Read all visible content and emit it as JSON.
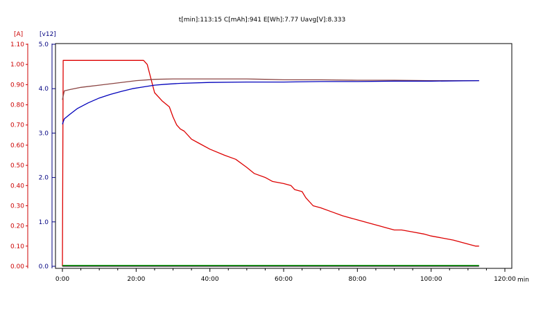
{
  "chart_data": {
    "type": "line",
    "title": "t[min]:113:15  C[mAh]:941  E[Wh]:7.77  Uavg[V]:8.333",
    "xlabel": "min",
    "y_left": {
      "label": "[A]",
      "color": "#cc0000",
      "range": [
        0,
        1.1
      ],
      "ticks": [
        "0.00",
        "0.10",
        "0.20",
        "0.30",
        "0.40",
        "0.50",
        "0.60",
        "0.70",
        "0.80",
        "0.90",
        "1.00",
        "1.10"
      ]
    },
    "y_right": {
      "label": "[v12]",
      "color": "#000080",
      "range": [
        0,
        5.0
      ],
      "ticks": [
        "0.0",
        "1.0",
        "2.0",
        "3.0",
        "4.0",
        "5.0"
      ]
    },
    "x_range": [
      0,
      120
    ],
    "x_ticks": [
      "0:00",
      "20:00",
      "40:00",
      "60:00",
      "80:00",
      "100:00",
      "120:00"
    ],
    "grid": false,
    "series": [
      {
        "color": "#dd0000",
        "axis": "left",
        "x": [
          0,
          0.2,
          1,
          3,
          5,
          8,
          10,
          13,
          16,
          19,
          21,
          22,
          23,
          24,
          25,
          27,
          29,
          30,
          31,
          32,
          33,
          35,
          37,
          40,
          44,
          47,
          50,
          52,
          55,
          57,
          60,
          62,
          63,
          65,
          66,
          68,
          70,
          73,
          76,
          80,
          84,
          86,
          88,
          90,
          92,
          95,
          98,
          100,
          103,
          106,
          108,
          110,
          112,
          113
        ],
        "y": [
          0.0,
          1.02,
          1.02,
          1.02,
          1.02,
          1.02,
          1.02,
          1.02,
          1.02,
          1.02,
          1.02,
          1.02,
          1.0,
          0.93,
          0.86,
          0.82,
          0.79,
          0.74,
          0.7,
          0.68,
          0.67,
          0.63,
          0.61,
          0.58,
          0.55,
          0.53,
          0.49,
          0.46,
          0.44,
          0.42,
          0.41,
          0.4,
          0.38,
          0.37,
          0.34,
          0.3,
          0.29,
          0.27,
          0.25,
          0.23,
          0.21,
          0.2,
          0.19,
          0.18,
          0.18,
          0.17,
          0.16,
          0.15,
          0.14,
          0.13,
          0.12,
          0.11,
          0.1,
          0.1
        ]
      },
      {
        "color": "#8b4543",
        "axis": "right",
        "x": [
          0,
          0.5,
          2,
          5,
          10,
          15,
          20,
          25,
          30,
          40,
          50,
          55,
          60,
          70,
          80,
          90,
          100,
          113
        ],
        "y": [
          3.75,
          3.95,
          3.98,
          4.03,
          4.08,
          4.13,
          4.18,
          4.21,
          4.22,
          4.22,
          4.22,
          4.21,
          4.2,
          4.2,
          4.19,
          4.19,
          4.18,
          4.18
        ]
      },
      {
        "color": "#0000bb",
        "axis": "right",
        "x": [
          0,
          0.5,
          2,
          4,
          7,
          10,
          13,
          16,
          19,
          22,
          25,
          28,
          32,
          40,
          50,
          60,
          70,
          80,
          90,
          100,
          113
        ],
        "y": [
          3.2,
          3.32,
          3.42,
          3.55,
          3.68,
          3.79,
          3.87,
          3.94,
          4.0,
          4.04,
          4.08,
          4.1,
          4.12,
          4.14,
          4.15,
          4.15,
          4.16,
          4.16,
          4.17,
          4.17,
          4.18
        ]
      },
      {
        "color": "#00a000",
        "axis": "right",
        "x": [
          0,
          113
        ],
        "y": [
          0.02,
          0.02
        ]
      },
      {
        "color": "#303030",
        "axis": "right",
        "x": [
          0,
          113
        ],
        "y": [
          0.0,
          0.0
        ]
      }
    ]
  }
}
